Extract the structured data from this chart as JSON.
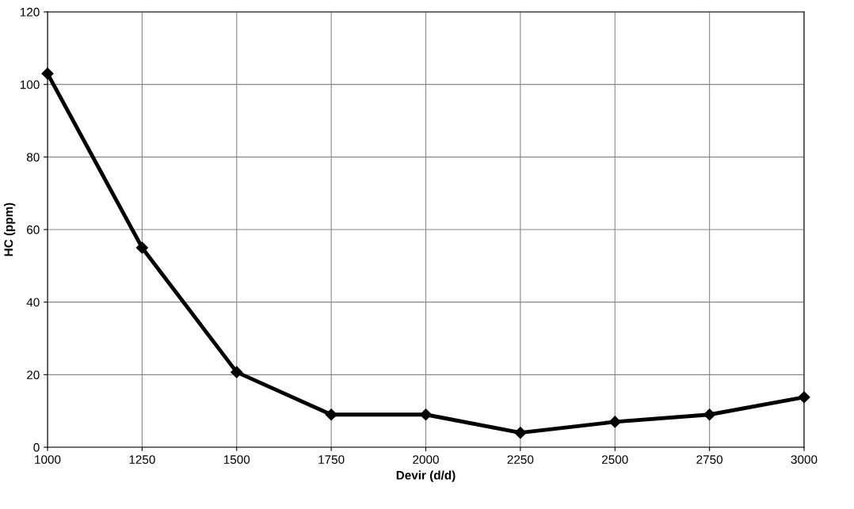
{
  "chart_data": {
    "type": "line",
    "xlabel": "Devir (d/d)",
    "ylabel": "HC (ppm)",
    "x": [
      1000,
      1250,
      1500,
      1750,
      2000,
      2250,
      2500,
      2750,
      3000
    ],
    "series": [
      {
        "color": "#000000",
        "values": [
          103,
          55,
          20.7,
          9,
          9,
          4,
          7,
          9,
          13.8
        ]
      }
    ],
    "xlim": [
      1000,
      3000
    ],
    "xticks": [
      1000,
      1250,
      1500,
      1750,
      2000,
      2250,
      2500,
      2750,
      3000
    ],
    "ylim": [
      0,
      120
    ],
    "yticks": [
      0,
      20,
      40,
      60,
      80,
      100,
      120
    ],
    "grid": true,
    "marker": "diamond",
    "line_style": "solid"
  }
}
